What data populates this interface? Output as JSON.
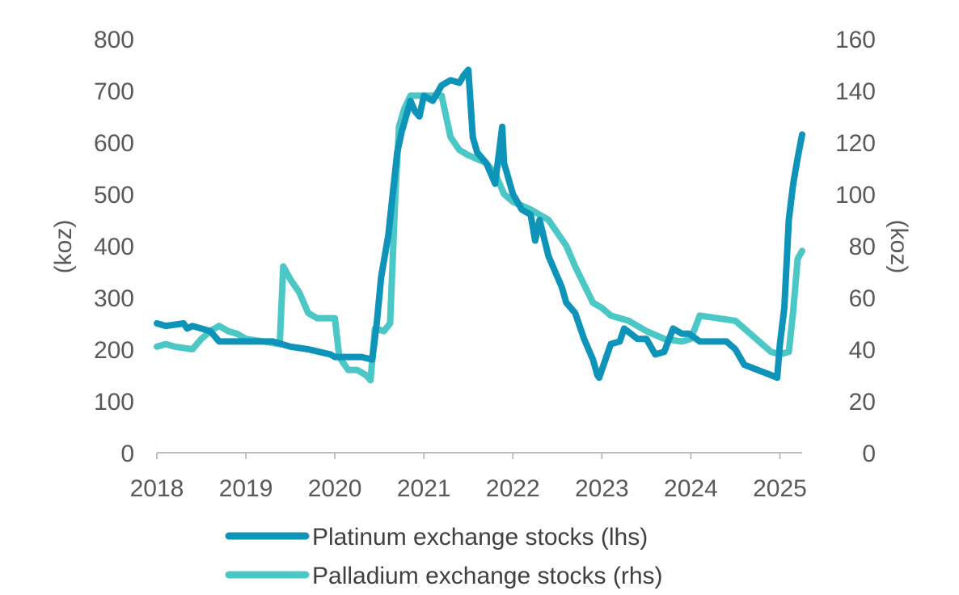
{
  "chart_data": {
    "type": "line",
    "title": "",
    "xlabel": "",
    "ylabel_left": "(koz)",
    "ylabel_right": "(koz)",
    "xlim": [
      2018,
      2025.25
    ],
    "ylim_left": [
      0,
      800
    ],
    "ylim_right": [
      0,
      160
    ],
    "x_ticks": [
      "2018",
      "2019",
      "2020",
      "2021",
      "2022",
      "2023",
      "2024",
      "2025"
    ],
    "y_ticks_left": [
      "0",
      "100",
      "200",
      "300",
      "400",
      "500",
      "600",
      "700",
      "800"
    ],
    "y_ticks_right": [
      "0",
      "20",
      "40",
      "60",
      "80",
      "100",
      "120",
      "140",
      "160"
    ],
    "legend_position": "bottom",
    "series": [
      {
        "name": "Platinum exchange stocks (lhs)",
        "axis": "left",
        "color": "#0E93B9",
        "x": [
          2018.0,
          2018.1,
          2018.3,
          2018.34,
          2018.4,
          2018.6,
          2018.7,
          2019.0,
          2019.3,
          2019.5,
          2019.7,
          2019.95,
          2020.0,
          2020.3,
          2020.42,
          2020.47,
          2020.52,
          2020.6,
          2020.7,
          2020.75,
          2020.8,
          2020.85,
          2020.9,
          2020.95,
          2021.0,
          2021.1,
          2021.2,
          2021.3,
          2021.4,
          2021.45,
          2021.5,
          2021.55,
          2021.6,
          2021.7,
          2021.8,
          2021.88,
          2021.9,
          2021.95,
          2022.0,
          2022.1,
          2022.2,
          2022.25,
          2022.3,
          2022.4,
          2022.5,
          2022.55,
          2022.6,
          2022.7,
          2022.8,
          2022.9,
          2022.95,
          2022.97,
          2023.1,
          2023.2,
          2023.25,
          2023.4,
          2023.5,
          2023.6,
          2023.7,
          2023.8,
          2023.9,
          2023.98,
          2024.1,
          2024.2,
          2024.4,
          2024.5,
          2024.6,
          2024.75,
          2024.9,
          2024.97,
          2025.0,
          2025.05,
          2025.1,
          2025.15,
          2025.2,
          2025.25
        ],
        "values": [
          250,
          245,
          250,
          240,
          245,
          235,
          215,
          215,
          215,
          205,
          200,
          190,
          185,
          185,
          180,
          250,
          340,
          420,
          580,
          620,
          650,
          680,
          660,
          650,
          690,
          680,
          710,
          720,
          715,
          730,
          740,
          610,
          580,
          560,
          520,
          630,
          560,
          530,
          500,
          470,
          460,
          410,
          450,
          380,
          340,
          320,
          290,
          270,
          220,
          180,
          150,
          145,
          210,
          215,
          240,
          220,
          220,
          190,
          195,
          240,
          230,
          230,
          215,
          215,
          215,
          200,
          170,
          160,
          150,
          145,
          210,
          280,
          450,
          520,
          570,
          615
        ]
      },
      {
        "name": "Palladium exchange stocks (rhs)",
        "axis": "right",
        "color": "#4BC8C6",
        "x": [
          2018.0,
          2018.1,
          2018.2,
          2018.4,
          2018.5,
          2018.6,
          2018.7,
          2018.8,
          2018.9,
          2019.0,
          2019.2,
          2019.38,
          2019.42,
          2019.5,
          2019.6,
          2019.7,
          2019.8,
          2020.0,
          2020.05,
          2020.15,
          2020.25,
          2020.35,
          2020.4,
          2020.45,
          2020.55,
          2020.62,
          2020.68,
          2020.72,
          2020.78,
          2020.85,
          2020.95,
          2021.0,
          2021.2,
          2021.3,
          2021.4,
          2021.5,
          2021.7,
          2021.8,
          2021.9,
          2022.0,
          2022.2,
          2022.4,
          2022.5,
          2022.6,
          2022.7,
          2022.8,
          2022.9,
          2023.0,
          2023.1,
          2023.3,
          2023.5,
          2023.7,
          2023.9,
          2024.0,
          2024.1,
          2024.3,
          2024.5,
          2024.6,
          2024.7,
          2024.8,
          2024.9,
          2025.0,
          2025.1,
          2025.15,
          2025.2,
          2025.25
        ],
        "values": [
          41,
          42,
          41,
          40,
          44,
          47,
          49,
          47,
          46,
          44,
          43,
          42,
          72,
          67,
          62,
          54,
          52,
          52,
          37,
          32,
          32,
          30,
          28,
          48,
          47,
          50,
          100,
          126,
          133,
          138,
          138,
          138,
          138,
          122,
          117,
          115,
          112,
          108,
          100,
          97,
          94,
          90,
          85,
          80,
          72,
          65,
          58,
          56,
          53,
          51,
          47,
          44,
          43,
          44,
          53,
          52,
          51,
          48,
          45,
          42,
          39,
          38,
          39,
          55,
          75,
          78
        ]
      }
    ]
  }
}
